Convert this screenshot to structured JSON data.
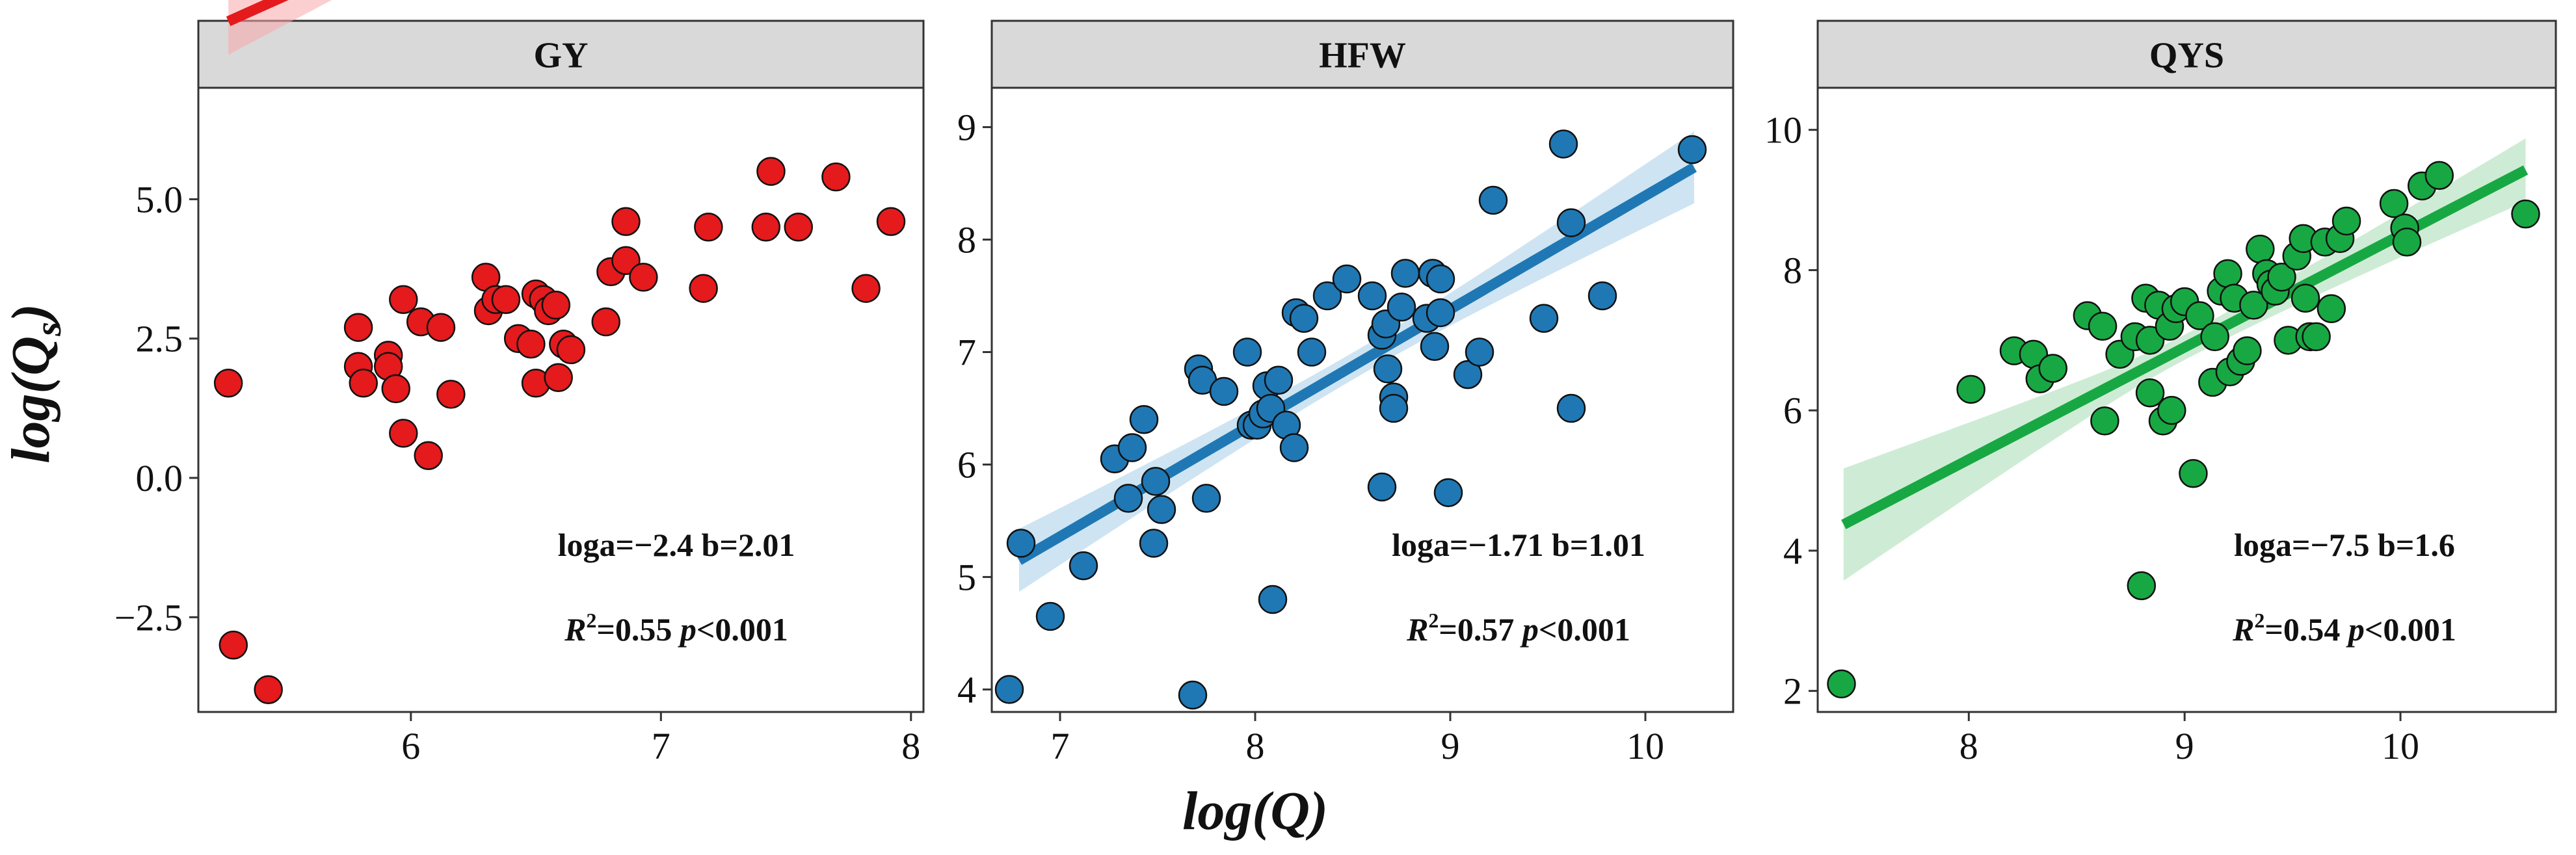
{
  "chart_data": {
    "type": "scatter",
    "xlabel": "log(Q)",
    "ylabel": "log(Q",
    "ylabel_sub": "s",
    "ylabel_close": ")",
    "panels": [
      {
        "title": "GY",
        "color": "#e41a1c",
        "band_color": "#f7a8aa",
        "xlim": [
          5.15,
          8.05
        ],
        "ylim": [
          -4.2,
          7.0
        ],
        "xticks": [
          6,
          7,
          8
        ],
        "xtick_labels": [
          "6",
          "7",
          "8"
        ],
        "yticks": [
          -2.5,
          0.0,
          2.5,
          5.0
        ],
        "ytick_labels": [
          "−2.5",
          "0.0",
          "2.5",
          "5.0"
        ],
        "fit": {
          "loga": -2.4,
          "b": 2.01,
          "x_range": [
            5.27,
            7.93
          ]
        },
        "band_halfwidth": {
          "start": 0.6,
          "mid": 0.25,
          "end": 0.75
        },
        "annotation": {
          "line1": "loga=−2.4  b=2.01",
          "r2_label": "R",
          "r2_sup": "2",
          "r2_value": "=0.55",
          "p_label": "p",
          "p_value": "<0.001"
        },
        "points": [
          [
            5.27,
            1.7
          ],
          [
            5.29,
            -3.0
          ],
          [
            5.43,
            -3.8
          ],
          [
            5.79,
            2.7
          ],
          [
            5.79,
            2.0
          ],
          [
            5.81,
            1.7
          ],
          [
            5.91,
            2.2
          ],
          [
            5.91,
            2.0
          ],
          [
            5.94,
            1.6
          ],
          [
            5.97,
            3.2
          ],
          [
            5.97,
            0.8
          ],
          [
            6.04,
            2.8
          ],
          [
            6.07,
            0.4
          ],
          [
            6.12,
            2.7
          ],
          [
            6.16,
            1.5
          ],
          [
            6.3,
            3.6
          ],
          [
            6.31,
            3.0
          ],
          [
            6.34,
            3.2
          ],
          [
            6.38,
            3.2
          ],
          [
            6.43,
            2.5
          ],
          [
            6.48,
            2.4
          ],
          [
            6.5,
            1.7
          ],
          [
            6.5,
            3.3
          ],
          [
            6.53,
            3.2
          ],
          [
            6.55,
            3.0
          ],
          [
            6.58,
            3.1
          ],
          [
            6.59,
            1.8
          ],
          [
            6.61,
            2.4
          ],
          [
            6.64,
            2.3
          ],
          [
            6.78,
            2.8
          ],
          [
            6.8,
            3.7
          ],
          [
            6.86,
            4.6
          ],
          [
            6.86,
            3.9
          ],
          [
            6.93,
            3.6
          ],
          [
            7.17,
            3.4
          ],
          [
            7.19,
            4.5
          ],
          [
            7.42,
            4.5
          ],
          [
            7.44,
            5.5
          ],
          [
            7.55,
            4.5
          ],
          [
            7.7,
            5.4
          ],
          [
            7.82,
            3.4
          ],
          [
            7.92,
            4.6
          ]
        ]
      },
      {
        "title": "HFW",
        "color": "#1f78b4",
        "band_color": "#a6cde8",
        "xlim": [
          6.65,
          10.45
        ],
        "ylim": [
          3.8,
          9.35
        ],
        "xticks": [
          7,
          8,
          9,
          10
        ],
        "xtick_labels": [
          "7",
          "8",
          "9",
          "10"
        ],
        "yticks": [
          4,
          5,
          6,
          7,
          8,
          9
        ],
        "ytick_labels": [
          "4",
          "5",
          "6",
          "7",
          "8",
          "9"
        ],
        "fit": {
          "loga": -1.71,
          "b": 1.01,
          "x_range": [
            6.79,
            10.25
          ]
        },
        "band_halfwidth": {
          "start": 0.28,
          "mid": 0.12,
          "end": 0.32
        },
        "annotation": {
          "line1": "loga=−1.71  b=1.01",
          "r2_label": "R",
          "r2_sup": "2",
          "r2_value": "=0.57",
          "p_label": "p",
          "p_value": "<0.001"
        },
        "points": [
          [
            6.74,
            4.0
          ],
          [
            6.8,
            5.3
          ],
          [
            6.95,
            4.65
          ],
          [
            7.12,
            5.1
          ],
          [
            7.28,
            6.05
          ],
          [
            7.35,
            5.7
          ],
          [
            7.37,
            6.15
          ],
          [
            7.43,
            6.4
          ],
          [
            7.48,
            5.3
          ],
          [
            7.49,
            5.85
          ],
          [
            7.52,
            5.6
          ],
          [
            7.68,
            3.95
          ],
          [
            7.71,
            6.85
          ],
          [
            7.73,
            6.75
          ],
          [
            7.75,
            5.7
          ],
          [
            7.84,
            6.65
          ],
          [
            7.96,
            7.0
          ],
          [
            7.98,
            6.35
          ],
          [
            8.01,
            6.35
          ],
          [
            8.04,
            6.45
          ],
          [
            8.06,
            6.7
          ],
          [
            8.08,
            6.5
          ],
          [
            8.09,
            4.8
          ],
          [
            8.12,
            6.75
          ],
          [
            8.16,
            6.35
          ],
          [
            8.2,
            6.15
          ],
          [
            8.21,
            7.35
          ],
          [
            8.25,
            7.3
          ],
          [
            8.29,
            7.0
          ],
          [
            8.37,
            7.5
          ],
          [
            8.47,
            7.65
          ],
          [
            8.6,
            7.5
          ],
          [
            8.65,
            5.8
          ],
          [
            8.65,
            7.15
          ],
          [
            8.67,
            7.25
          ],
          [
            8.68,
            6.85
          ],
          [
            8.71,
            6.6
          ],
          [
            8.71,
            6.5
          ],
          [
            8.75,
            7.4
          ],
          [
            8.77,
            7.7
          ],
          [
            8.88,
            7.3
          ],
          [
            8.91,
            7.7
          ],
          [
            8.92,
            7.05
          ],
          [
            8.95,
            7.65
          ],
          [
            8.95,
            7.35
          ],
          [
            8.99,
            5.75
          ],
          [
            9.09,
            6.8
          ],
          [
            9.15,
            7.0
          ],
          [
            9.22,
            8.35
          ],
          [
            9.48,
            7.3
          ],
          [
            9.58,
            8.85
          ],
          [
            9.62,
            6.5
          ],
          [
            9.62,
            8.15
          ],
          [
            9.78,
            7.5
          ],
          [
            10.24,
            8.8
          ]
        ]
      },
      {
        "title": "QYS",
        "color": "#18a843",
        "band_color": "#a5dcb2",
        "xlim": [
          7.3,
          10.72
        ],
        "ylim": [
          1.7,
          10.6
        ],
        "xticks": [
          8,
          9,
          10
        ],
        "xtick_labels": [
          "8",
          "9",
          "10"
        ],
        "yticks": [
          2,
          4,
          6,
          8,
          10
        ],
        "ytick_labels": [
          "2",
          "4",
          "6",
          "8",
          "10"
        ],
        "fit": {
          "loga": -7.5,
          "b": 1.6,
          "x_range": [
            7.42,
            10.58
          ]
        },
        "band_halfwidth": {
          "start": 0.8,
          "mid": 0.18,
          "end": 0.45
        },
        "annotation": {
          "line1": "loga=−7.5  b=1.6",
          "r2_label": "R",
          "r2_sup": "2",
          "r2_value": "=0.54",
          "p_label": "p",
          "p_value": "<0.001"
        },
        "points": [
          [
            7.41,
            2.1
          ],
          [
            8.01,
            6.3
          ],
          [
            8.21,
            6.85
          ],
          [
            8.3,
            6.8
          ],
          [
            8.33,
            6.45
          ],
          [
            8.39,
            6.6
          ],
          [
            8.55,
            7.35
          ],
          [
            8.62,
            7.2
          ],
          [
            8.63,
            5.85
          ],
          [
            8.7,
            6.8
          ],
          [
            8.77,
            7.05
          ],
          [
            8.8,
            3.5
          ],
          [
            8.82,
            7.6
          ],
          [
            8.84,
            7.0
          ],
          [
            8.84,
            6.25
          ],
          [
            8.88,
            7.5
          ],
          [
            8.9,
            5.85
          ],
          [
            8.93,
            7.2
          ],
          [
            8.94,
            6.0
          ],
          [
            8.96,
            7.45
          ],
          [
            9.0,
            7.55
          ],
          [
            9.04,
            5.1
          ],
          [
            9.07,
            7.35
          ],
          [
            9.13,
            6.4
          ],
          [
            9.14,
            7.05
          ],
          [
            9.17,
            7.7
          ],
          [
            9.2,
            7.95
          ],
          [
            9.21,
            6.55
          ],
          [
            9.23,
            7.6
          ],
          [
            9.26,
            6.7
          ],
          [
            9.29,
            6.85
          ],
          [
            9.32,
            7.5
          ],
          [
            9.35,
            8.3
          ],
          [
            9.38,
            7.95
          ],
          [
            9.4,
            7.8
          ],
          [
            9.42,
            7.7
          ],
          [
            9.45,
            7.9
          ],
          [
            9.48,
            7.0
          ],
          [
            9.52,
            8.2
          ],
          [
            9.55,
            8.45
          ],
          [
            9.56,
            7.6
          ],
          [
            9.58,
            7.05
          ],
          [
            9.61,
            7.05
          ],
          [
            9.65,
            8.4
          ],
          [
            9.68,
            7.45
          ],
          [
            9.72,
            8.45
          ],
          [
            9.75,
            8.7
          ],
          [
            9.97,
            8.95
          ],
          [
            10.02,
            8.6
          ],
          [
            10.03,
            8.4
          ],
          [
            10.1,
            9.2
          ],
          [
            10.18,
            9.35
          ],
          [
            10.58,
            8.8
          ]
        ]
      }
    ]
  }
}
